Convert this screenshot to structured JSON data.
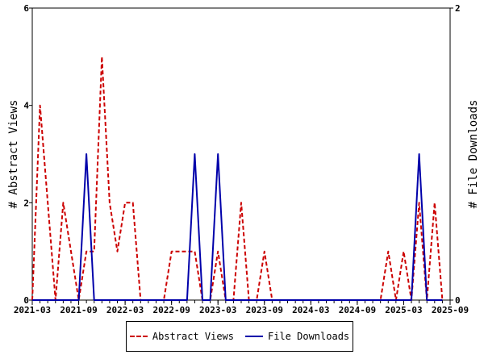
{
  "chart_data": {
    "type": "line",
    "x_ticks": [
      "2021-03",
      "2021-09",
      "2022-03",
      "2022-09",
      "2023-03",
      "2023-09",
      "2024-03",
      "2024-09",
      "2025-03",
      "2025-09"
    ],
    "x_range": [
      "2021-03",
      "2025-09"
    ],
    "y_left": {
      "label": "# Abstract Views",
      "ticks": [
        "0",
        "2",
        "4",
        "6"
      ],
      "range": [
        0,
        6
      ]
    },
    "y_right": {
      "label": "# File Downloads",
      "ticks": [
        "0",
        "2"
      ],
      "range": [
        0,
        2
      ]
    },
    "grid": false,
    "legend_position": "bottom",
    "series": [
      {
        "name": "Abstract Views",
        "axis": "left",
        "color": "#cc0000",
        "style": "dashed",
        "points": [
          [
            "2021-03",
            0
          ],
          [
            "2021-04",
            4
          ],
          [
            "2021-05",
            2
          ],
          [
            "2021-06",
            0
          ],
          [
            "2021-07",
            2
          ],
          [
            "2021-08",
            1
          ],
          [
            "2021-09",
            0
          ],
          [
            "2021-10",
            1
          ],
          [
            "2021-11",
            1
          ],
          [
            "2021-12",
            5
          ],
          [
            "2022-01",
            2
          ],
          [
            "2022-02",
            1
          ],
          [
            "2022-03",
            2
          ],
          [
            "2022-04",
            2
          ],
          [
            "2022-05",
            0
          ],
          [
            "2022-06",
            0
          ],
          [
            "2022-07",
            0
          ],
          [
            "2022-08",
            0
          ],
          [
            "2022-09",
            1
          ],
          [
            "2022-10",
            1
          ],
          [
            "2022-11",
            1
          ],
          [
            "2022-12",
            1
          ],
          [
            "2023-01",
            0
          ],
          [
            "2023-02",
            0
          ],
          [
            "2023-03",
            1
          ],
          [
            "2023-04",
            0
          ],
          [
            "2023-05",
            0
          ],
          [
            "2023-06",
            2
          ],
          [
            "2023-07",
            0
          ],
          [
            "2023-08",
            0
          ],
          [
            "2023-09",
            1
          ],
          [
            "2023-10",
            0
          ],
          [
            "2023-11",
            0
          ],
          [
            "2023-12",
            0
          ],
          [
            "2024-01",
            0
          ],
          [
            "2024-02",
            0
          ],
          [
            "2024-03",
            0
          ],
          [
            "2024-04",
            0
          ],
          [
            "2024-05",
            0
          ],
          [
            "2024-06",
            0
          ],
          [
            "2024-07",
            0
          ],
          [
            "2024-08",
            0
          ],
          [
            "2024-09",
            0
          ],
          [
            "2024-10",
            0
          ],
          [
            "2024-11",
            0
          ],
          [
            "2024-12",
            0
          ],
          [
            "2025-01",
            1
          ],
          [
            "2025-02",
            0
          ],
          [
            "2025-03",
            1
          ],
          [
            "2025-04",
            0
          ],
          [
            "2025-05",
            2
          ],
          [
            "2025-06",
            0
          ],
          [
            "2025-07",
            2
          ],
          [
            "2025-08",
            0
          ]
        ]
      },
      {
        "name": "File Downloads",
        "axis": "right",
        "color": "#0000aa",
        "style": "solid",
        "points": [
          [
            "2021-03",
            0
          ],
          [
            "2021-04",
            0
          ],
          [
            "2021-05",
            0
          ],
          [
            "2021-06",
            0
          ],
          [
            "2021-07",
            0
          ],
          [
            "2021-08",
            0
          ],
          [
            "2021-09",
            0
          ],
          [
            "2021-10",
            1
          ],
          [
            "2021-11",
            0
          ],
          [
            "2021-12",
            0
          ],
          [
            "2022-01",
            0
          ],
          [
            "2022-02",
            0
          ],
          [
            "2022-03",
            0
          ],
          [
            "2022-04",
            0
          ],
          [
            "2022-05",
            0
          ],
          [
            "2022-06",
            0
          ],
          [
            "2022-07",
            0
          ],
          [
            "2022-08",
            0
          ],
          [
            "2022-09",
            0
          ],
          [
            "2022-10",
            0
          ],
          [
            "2022-11",
            0
          ],
          [
            "2022-12",
            1
          ],
          [
            "2023-01",
            0
          ],
          [
            "2023-02",
            0
          ],
          [
            "2023-03",
            1
          ],
          [
            "2023-04",
            0
          ],
          [
            "2023-05",
            0
          ],
          [
            "2023-06",
            0
          ],
          [
            "2023-07",
            0
          ],
          [
            "2023-08",
            0
          ],
          [
            "2023-09",
            0
          ],
          [
            "2023-10",
            0
          ],
          [
            "2023-11",
            0
          ],
          [
            "2023-12",
            0
          ],
          [
            "2024-01",
            0
          ],
          [
            "2024-02",
            0
          ],
          [
            "2024-03",
            0
          ],
          [
            "2024-04",
            0
          ],
          [
            "2024-05",
            0
          ],
          [
            "2024-06",
            0
          ],
          [
            "2024-07",
            0
          ],
          [
            "2024-08",
            0
          ],
          [
            "2024-09",
            0
          ],
          [
            "2024-10",
            0
          ],
          [
            "2024-11",
            0
          ],
          [
            "2024-12",
            0
          ],
          [
            "2025-01",
            0
          ],
          [
            "2025-02",
            0
          ],
          [
            "2025-03",
            0
          ],
          [
            "2025-04",
            0
          ],
          [
            "2025-05",
            1
          ],
          [
            "2025-06",
            0
          ],
          [
            "2025-07",
            0
          ],
          [
            "2025-08",
            0
          ]
        ]
      }
    ]
  },
  "legend": {
    "items": [
      {
        "label": "Abstract Views",
        "icon": "dashed-red-line"
      },
      {
        "label": "File Downloads",
        "icon": "solid-blue-line"
      }
    ]
  }
}
